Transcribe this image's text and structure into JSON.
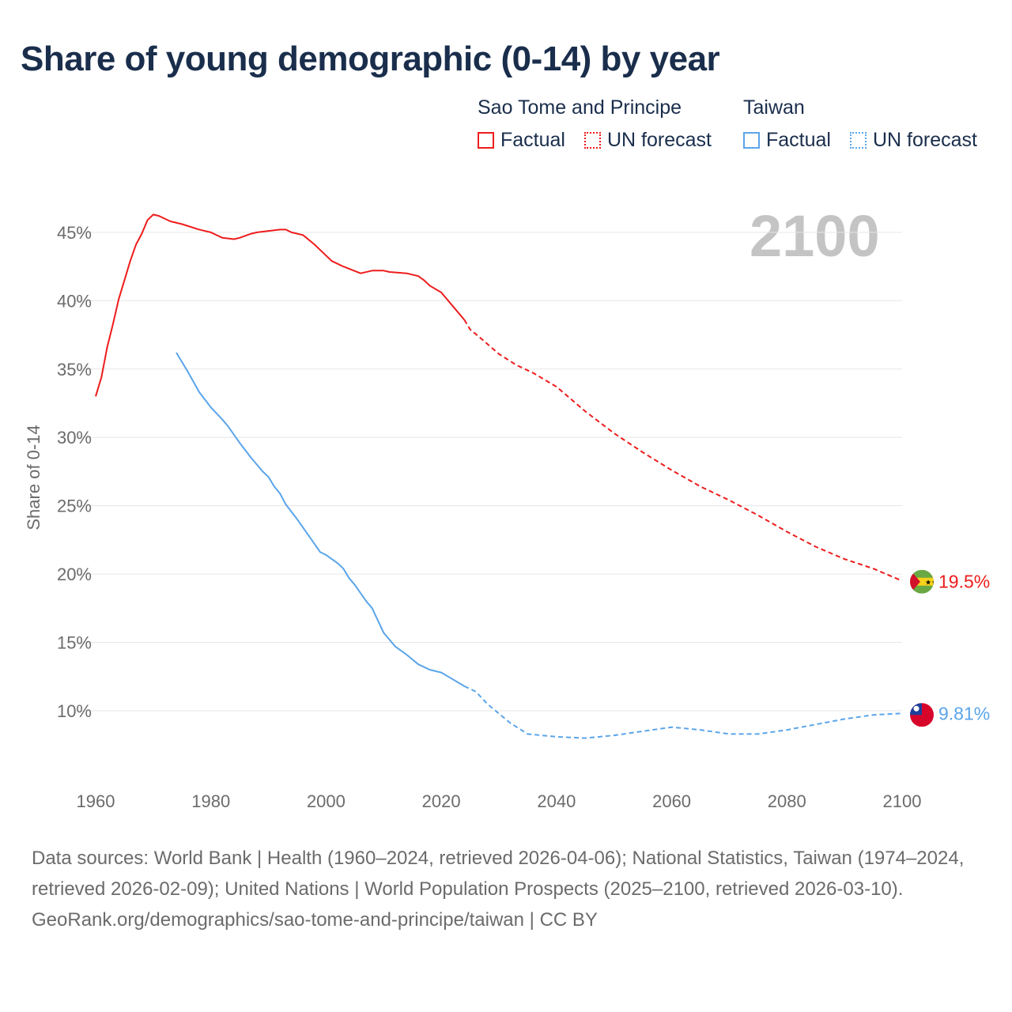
{
  "title": "Share of young demographic (0-14) by year",
  "year_display": "2100",
  "colors": {
    "stp": "#ee1c1c",
    "taiwan": "#5aa5ea",
    "grid": "#e6e6e6",
    "axis_text": "#6b6b6b"
  },
  "legend": [
    {
      "country": "Sao Tome and Principe",
      "factual": "Factual",
      "forecast": "UN forecast",
      "color": "#ee1c1c"
    },
    {
      "country": "Taiwan",
      "factual": "Factual",
      "forecast": "UN forecast",
      "color": "#5aa5ea"
    }
  ],
  "footer": {
    "sources": "Data sources: World Bank | Health (1960–2024, retrieved 2026-04-06); National Statistics, Taiwan (1974–2024, retrieved 2026-02-09); United Nations | World Population Prospects (2025–2100, retrieved 2026-03-10).",
    "link": "GeoRank.org/demographics/sao-tome-and-principe/taiwan | CC BY"
  },
  "chart_data": {
    "type": "line",
    "title": "Share of young demographic (0-14) by year",
    "xlabel": "",
    "ylabel": "Share of 0-14",
    "xlim": [
      1960,
      2100
    ],
    "ylim": [
      5,
      47
    ],
    "xticks": [
      1960,
      1980,
      2000,
      2020,
      2040,
      2060,
      2080,
      2100
    ],
    "yticks": [
      10,
      15,
      20,
      25,
      30,
      35,
      40,
      45
    ],
    "ytick_labels": [
      "10%",
      "15%",
      "20%",
      "25%",
      "30%",
      "35%",
      "40%",
      "45%"
    ],
    "grid": true,
    "legend_position": "top-right",
    "series": [
      {
        "name": "Sao Tome and Principe",
        "kind": "Factual",
        "color": "#ee1c1c",
        "x": [
          1960,
          1961,
          1962,
          1963,
          1964,
          1965,
          1966,
          1967,
          1968,
          1969,
          1970,
          1971,
          1972,
          1973,
          1975,
          1978,
          1980,
          1982,
          1984,
          1985,
          1987,
          1988,
          1990,
          1992,
          1993,
          1994,
          1996,
          1998,
          1999,
          2001,
          2003,
          2006,
          2008,
          2010,
          2011,
          2014,
          2016,
          2017,
          2018,
          2020,
          2022,
          2024
        ],
        "y": [
          33.0,
          34.4,
          36.6,
          38.3,
          40.1,
          41.5,
          42.9,
          44.1,
          44.9,
          45.9,
          46.3,
          46.2,
          46.0,
          45.8,
          45.6,
          45.2,
          45.0,
          44.6,
          44.5,
          44.6,
          44.9,
          45.0,
          45.1,
          45.2,
          45.2,
          45.0,
          44.8,
          44.1,
          43.7,
          42.9,
          42.5,
          42.0,
          42.2,
          42.2,
          42.1,
          42.0,
          41.8,
          41.5,
          41.1,
          40.6,
          39.6,
          38.6
        ]
      },
      {
        "name": "Sao Tome and Principe",
        "kind": "UN forecast",
        "color": "#ee1c1c",
        "x": [
          2024,
          2025,
          2027,
          2030,
          2033,
          2036,
          2040,
          2045,
          2050,
          2055,
          2060,
          2065,
          2070,
          2075,
          2080,
          2085,
          2090,
          2095,
          2100
        ],
        "y": [
          38.6,
          37.9,
          37.2,
          36.1,
          35.3,
          34.7,
          33.7,
          31.9,
          30.3,
          28.9,
          27.6,
          26.4,
          25.4,
          24.3,
          23.1,
          22.0,
          21.1,
          20.4,
          19.5
        ]
      },
      {
        "name": "Taiwan",
        "kind": "Factual",
        "color": "#5aa5ea",
        "x": [
          1974,
          1976,
          1978,
          1980,
          1982,
          1983,
          1985,
          1987,
          1989,
          1990,
          1991,
          1992,
          1993,
          1995,
          1997,
          1999,
          2000,
          2002,
          2003,
          2004,
          2005,
          2007,
          2008,
          2010,
          2012,
          2014,
          2016,
          2018,
          2020,
          2022,
          2024
        ],
        "y": [
          36.2,
          34.8,
          33.3,
          32.2,
          31.3,
          30.8,
          29.6,
          28.5,
          27.5,
          27.1,
          26.4,
          25.9,
          25.1,
          24.0,
          22.8,
          21.6,
          21.4,
          20.8,
          20.4,
          19.7,
          19.2,
          18.0,
          17.5,
          15.7,
          14.7,
          14.1,
          13.4,
          13.0,
          12.8,
          12.3,
          11.8
        ]
      },
      {
        "name": "Taiwan",
        "kind": "UN forecast",
        "color": "#5aa5ea",
        "x": [
          2024,
          2026,
          2028,
          2030,
          2032,
          2035,
          2040,
          2045,
          2050,
          2055,
          2060,
          2065,
          2070,
          2075,
          2080,
          2085,
          2090,
          2095,
          2100
        ],
        "y": [
          11.8,
          11.4,
          10.5,
          9.8,
          9.1,
          8.3,
          8.1,
          8.0,
          8.2,
          8.5,
          8.8,
          8.6,
          8.3,
          8.3,
          8.6,
          9.0,
          9.4,
          9.7,
          9.81
        ]
      }
    ],
    "end_labels": [
      {
        "country": "Sao Tome and Principe",
        "value": 19.5,
        "label": "19.5%",
        "color": "#ee1c1c",
        "icon": "flag-sao-tome-icon"
      },
      {
        "country": "Taiwan",
        "value": 9.81,
        "label": "9.81%",
        "color": "#5aa5ea",
        "icon": "flag-taiwan-icon"
      }
    ]
  }
}
